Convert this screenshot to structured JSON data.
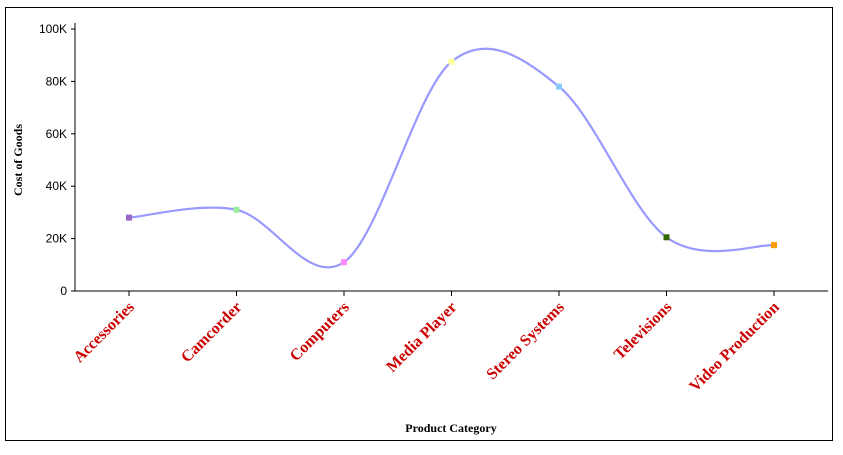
{
  "chart_data": {
    "type": "line",
    "curve": "smooth",
    "title": "",
    "xlabel": "Product Category",
    "ylabel": "Cost of Goods",
    "categories": [
      "Accessories",
      "Camcorder",
      "Computers",
      "Media Player",
      "Stereo Systems",
      "Televisions",
      "Video Production"
    ],
    "series": [
      {
        "values": [
          28000,
          31000,
          11000,
          87500,
          78000,
          20500,
          17500
        ],
        "line_color": "#9999ff",
        "marker_colors": [
          "#9966cc",
          "#99ee99",
          "#ff88ff",
          "#ffff99",
          "#88ccff",
          "#336600",
          "#ff9900"
        ]
      }
    ],
    "yticks": [
      0,
      20000,
      40000,
      60000,
      80000,
      100000
    ],
    "ytick_labels": [
      "0",
      "20K",
      "40K",
      "60K",
      "80K",
      "100K"
    ],
    "ylim": [
      0,
      100000
    ],
    "grid": false,
    "legend": false,
    "category_label_color": "#cc0000"
  }
}
